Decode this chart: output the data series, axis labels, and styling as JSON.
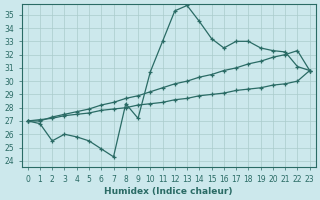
{
  "xlabel": "Humidex (Indice chaleur)",
  "xlim": [
    -0.5,
    23.5
  ],
  "ylim": [
    23.5,
    35.8
  ],
  "yticks": [
    24,
    25,
    26,
    27,
    28,
    29,
    30,
    31,
    32,
    33,
    34,
    35
  ],
  "xticks": [
    0,
    1,
    2,
    3,
    4,
    5,
    6,
    7,
    8,
    9,
    10,
    11,
    12,
    13,
    14,
    15,
    16,
    17,
    18,
    19,
    20,
    21,
    22,
    23
  ],
  "bg_color": "#cce8ec",
  "grid_color": "#aacccc",
  "line_color": "#2a6b65",
  "line1_y": [
    27.0,
    26.8,
    25.5,
    26.0,
    25.8,
    25.5,
    24.9,
    24.3,
    28.3,
    27.2,
    30.7,
    33.0,
    35.3,
    35.7,
    34.5,
    33.2,
    32.5,
    33.0,
    33.0,
    32.5,
    32.3,
    32.2,
    31.1,
    30.8
  ],
  "line2_y": [
    27.0,
    27.0,
    27.3,
    27.5,
    27.7,
    27.9,
    28.2,
    28.4,
    28.7,
    28.9,
    29.2,
    29.5,
    29.8,
    30.0,
    30.3,
    30.5,
    30.8,
    31.0,
    31.3,
    31.5,
    31.8,
    32.0,
    32.3,
    30.8
  ],
  "line3_y": [
    27.0,
    27.1,
    27.2,
    27.4,
    27.5,
    27.6,
    27.8,
    27.9,
    28.0,
    28.2,
    28.3,
    28.4,
    28.6,
    28.7,
    28.9,
    29.0,
    29.1,
    29.3,
    29.4,
    29.5,
    29.7,
    29.8,
    30.0,
    30.8
  ]
}
